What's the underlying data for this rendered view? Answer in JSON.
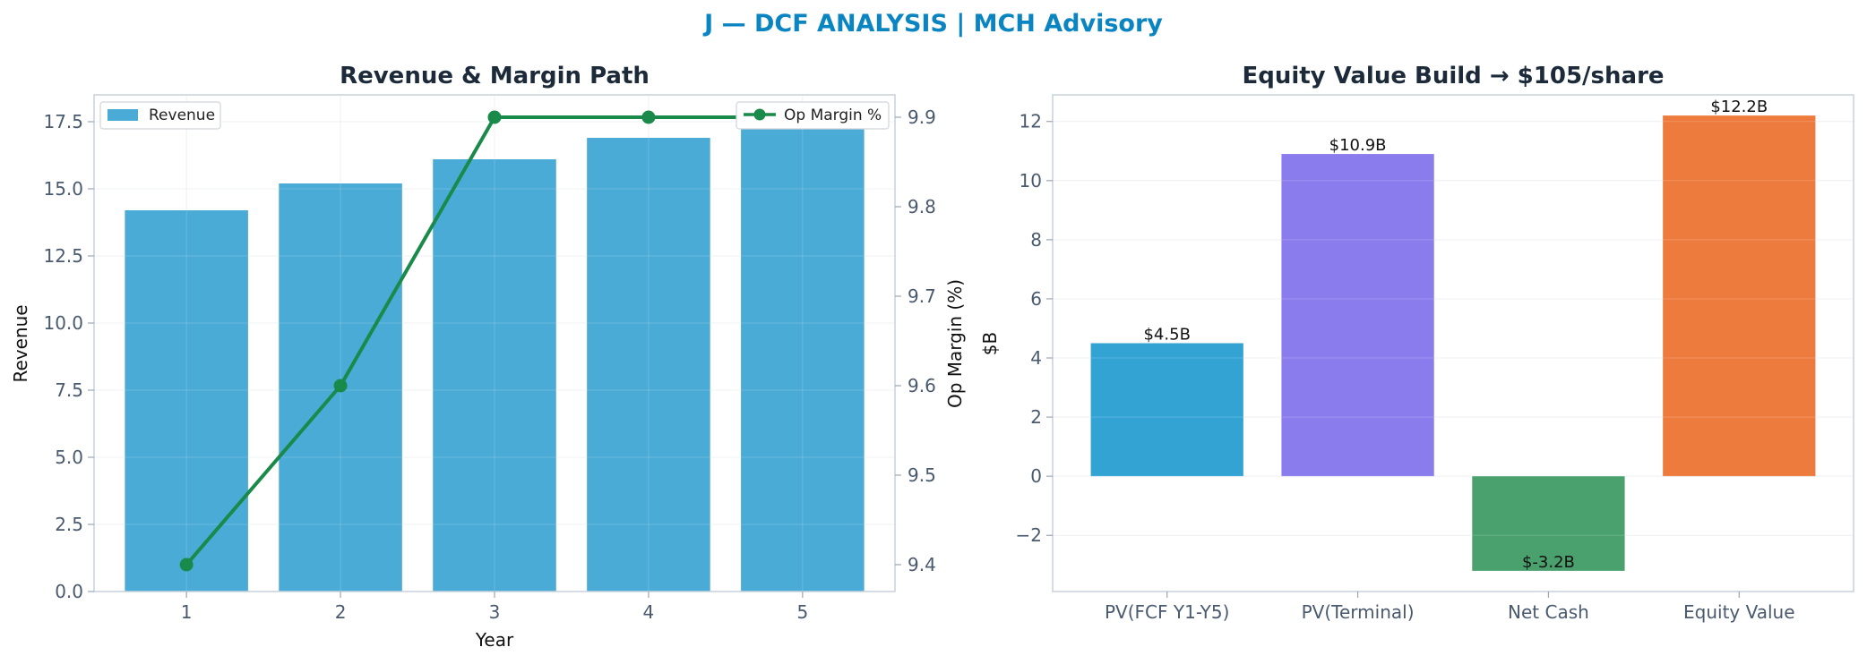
{
  "suptitle": "J — DCF ANALYSIS | MCH Advisory",
  "colors": {
    "suptitle": "#0a85c2",
    "revenue_bar": "#4aabd6",
    "op_margin_line": "#1a8a4a",
    "pv_fcf": "#33a3d4",
    "pv_terminal": "#8a7cec",
    "net_cash": "#4aa16e",
    "equity_value": "#ee7b3e"
  },
  "chart_data": [
    {
      "type": "bar",
      "title": "Revenue & Margin Path",
      "xlabel": "Year",
      "ylabel": "Revenue",
      "y2label": "Op Margin (%)",
      "categories": [
        "1",
        "2",
        "3",
        "4",
        "5"
      ],
      "series": [
        {
          "name": "Revenue",
          "type": "bar",
          "axis": "left",
          "values": [
            14.2,
            15.2,
            16.1,
            16.9,
            17.6
          ]
        },
        {
          "name": "Op Margin %",
          "type": "line",
          "axis": "right",
          "values": [
            9.4,
            9.6,
            9.9,
            9.9,
            9.9
          ]
        }
      ],
      "ylim": [
        0,
        18.5
      ],
      "y2lim": [
        9.37,
        9.925
      ],
      "yticks": [
        "0.0",
        "2.5",
        "5.0",
        "7.5",
        "10.0",
        "12.5",
        "15.0",
        "17.5"
      ],
      "y2ticks": [
        "9.4",
        "9.5",
        "9.6",
        "9.7",
        "9.8",
        "9.9"
      ],
      "legend": [
        "top-left",
        "top-right"
      ],
      "grid": true
    },
    {
      "type": "bar",
      "title": "Equity Value Build → $105/share",
      "xlabel": "",
      "ylabel": "$B",
      "categories": [
        "PV(FCF Y1-Y5)",
        "PV(Terminal)",
        "Net Cash",
        "Equity Value"
      ],
      "values": [
        4.5,
        10.9,
        -3.2,
        12.2
      ],
      "data_labels": [
        "$4.5B",
        "$10.9B",
        "$-3.2B",
        "$12.2B"
      ],
      "ylim": [
        -3.9,
        12.9
      ],
      "yticks": [
        "−2",
        "0",
        "2",
        "4",
        "6",
        "8",
        "10",
        "12"
      ],
      "grid": true
    }
  ]
}
